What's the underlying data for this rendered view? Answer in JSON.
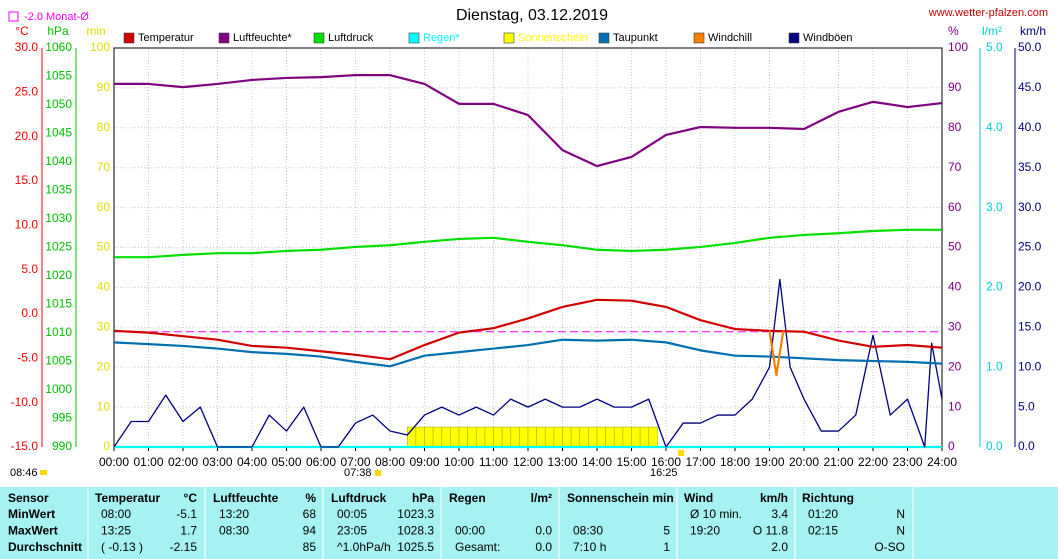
{
  "chart_data": {
    "type": "line",
    "title": "Dienstag, 03.12.2019",
    "source": "www.wetter-pfalzen.com",
    "mean": {
      "value": -2.0,
      "label": "-2.0 Monat-Ø",
      "color": "#ff00ff"
    },
    "sun": {
      "sunrise": "07:38",
      "sunset": "16:25",
      "duration": "08:46"
    },
    "grid": true,
    "xlim": [
      0,
      24
    ],
    "xticks": [
      {
        "value": 0,
        "label": "00:00"
      },
      {
        "value": 1,
        "label": "01:00"
      },
      {
        "value": 2,
        "label": "02:00"
      },
      {
        "value": 3,
        "label": "03:00"
      },
      {
        "value": 4,
        "label": "04:00"
      },
      {
        "value": 5,
        "label": "05:00"
      },
      {
        "value": 6,
        "label": "06:00"
      },
      {
        "value": 7,
        "label": "07:00"
      },
      {
        "value": 8,
        "label": "08:00"
      },
      {
        "value": 9,
        "label": "09:00"
      },
      {
        "value": 10,
        "label": "10:00"
      },
      {
        "value": 11,
        "label": "11:00"
      },
      {
        "value": 12,
        "label": "12:00"
      },
      {
        "value": 13,
        "label": "13:00"
      },
      {
        "value": 14,
        "label": "14:00"
      },
      {
        "value": 15,
        "label": "15:00"
      },
      {
        "value": 16,
        "label": "16:00"
      },
      {
        "value": 17,
        "label": "17:00"
      },
      {
        "value": 18,
        "label": "18:00"
      },
      {
        "value": 19,
        "label": "19:00"
      },
      {
        "value": 20,
        "label": "20:00"
      },
      {
        "value": 21,
        "label": "21:00"
      },
      {
        "value": 22,
        "label": "22:00"
      },
      {
        "value": 23,
        "label": "23:00"
      },
      {
        "value": 24,
        "label": "24:00"
      }
    ],
    "axes": {
      "temp": {
        "unit": "°C",
        "color": "#ff0000",
        "lim": [
          -15,
          30
        ],
        "ticks": [
          {
            "value": 30,
            "label": "30.0"
          },
          {
            "value": 25,
            "label": "25.0"
          },
          {
            "value": 20,
            "label": "20.0"
          },
          {
            "value": 15,
            "label": "15.0"
          },
          {
            "value": 10,
            "label": "10.0"
          },
          {
            "value": 5,
            "label": "5.0"
          },
          {
            "value": 0,
            "label": "0.0"
          },
          {
            "value": -5,
            "label": "-5.0"
          },
          {
            "value": -10,
            "label": "-10.0"
          },
          {
            "value": -15,
            "label": "-15.0"
          }
        ]
      },
      "press": {
        "unit": "hPa",
        "color": "#00c000",
        "lim": [
          990,
          1060
        ],
        "ticks": [
          1060,
          1055,
          1050,
          1045,
          1040,
          1035,
          1030,
          1025,
          1020,
          1015,
          1010,
          1005,
          1000,
          995,
          990
        ]
      },
      "sunmin": {
        "unit": "min",
        "color": "#e0e000",
        "lim": [
          0,
          100
        ],
        "ticks": [
          100,
          90,
          80,
          70,
          60,
          50,
          40,
          30,
          20,
          10,
          0
        ]
      },
      "hum": {
        "unit": "%",
        "color": "#800080",
        "lim": [
          0,
          100
        ],
        "ticks": [
          100,
          90,
          80,
          70,
          60,
          50,
          40,
          30,
          20,
          10,
          0
        ]
      },
      "rain": {
        "unit": "l/m²",
        "color": "#00d0d0",
        "lim": [
          0,
          5
        ],
        "ticks": [
          {
            "value": 5,
            "label": "5.0"
          },
          {
            "value": 4,
            "label": "4.0"
          },
          {
            "value": 3,
            "label": "3.0"
          },
          {
            "value": 2,
            "label": "2.0"
          },
          {
            "value": 1,
            "label": "1.0"
          },
          {
            "value": 0,
            "label": "0.0"
          }
        ]
      },
      "wind": {
        "unit": "km/h",
        "color": "#000080",
        "lim": [
          0,
          50
        ],
        "ticks": [
          {
            "value": 50,
            "label": "50.0"
          },
          {
            "value": 45,
            "label": "45.0"
          },
          {
            "value": 40,
            "label": "40.0"
          },
          {
            "value": 35,
            "label": "35.0"
          },
          {
            "value": 30,
            "label": "30.0"
          },
          {
            "value": 25,
            "label": "25.0"
          },
          {
            "value": 20,
            "label": "20.0"
          },
          {
            "value": 15,
            "label": "15.0"
          },
          {
            "value": 10,
            "label": "10.0"
          },
          {
            "value": 5,
            "label": "5.0"
          },
          {
            "value": 0,
            "label": "0.0"
          }
        ]
      }
    },
    "series": [
      {
        "name": "Temperatur",
        "color": "#d00000",
        "axis": "temp",
        "x": [
          0,
          1,
          2,
          3,
          4,
          5,
          6,
          7,
          8,
          9,
          10,
          11,
          12,
          13,
          14,
          15,
          16,
          17,
          18,
          19,
          20,
          21,
          22,
          23,
          24
        ],
        "values": [
          -1.9,
          -2.1,
          -2.5,
          -2.9,
          -3.6,
          -3.8,
          -4.2,
          -4.6,
          -5.1,
          -3.5,
          -2.1,
          -1.6,
          -0.5,
          0.8,
          1.6,
          1.5,
          0.8,
          -0.7,
          -1.7,
          -1.9,
          -2.0,
          -3.0,
          -3.7,
          -3.5,
          -3.8
        ]
      },
      {
        "name": "Luftfeuchte*",
        "color": "#800080",
        "axis": "hum",
        "x": [
          0,
          1,
          2,
          3,
          4,
          5,
          6,
          7,
          8,
          9,
          10,
          11,
          12,
          13,
          14,
          15,
          16,
          17,
          18,
          19,
          20,
          21,
          22,
          23,
          24
        ],
        "values": [
          91,
          91,
          90.2,
          91,
          92,
          92.5,
          92.7,
          93.2,
          93.2,
          91,
          86,
          86,
          83.2,
          74.4,
          70.4,
          72.7,
          78.2,
          80.2,
          80,
          80,
          79.7,
          84,
          86.5,
          85.2,
          86.2
        ]
      },
      {
        "name": "Luftdruck",
        "color": "#00e000",
        "axis": "press",
        "x": [
          0,
          1,
          2,
          3,
          4,
          5,
          6,
          7,
          8,
          9,
          10,
          11,
          12,
          13,
          14,
          15,
          16,
          17,
          18,
          19,
          20,
          21,
          22,
          23,
          24
        ],
        "values": [
          1023.3,
          1023.3,
          1023.7,
          1024.0,
          1024.0,
          1024.4,
          1024.6,
          1025.1,
          1025.4,
          1026.0,
          1026.5,
          1026.7,
          1026.0,
          1025.4,
          1024.6,
          1024.4,
          1024.6,
          1025.1,
          1025.8,
          1026.7,
          1027.2,
          1027.5,
          1027.9,
          1028.1,
          1028.1
        ]
      },
      {
        "name": "Regen*",
        "color": "#00ffff",
        "axis": "rain",
        "x": [
          0,
          24
        ],
        "values": [
          0,
          0
        ]
      },
      {
        "name": "Sonnenschein",
        "color": "#ffff00",
        "axis": "sunmin",
        "type": "bar",
        "x": [
          8.5,
          8.75,
          9,
          9.25,
          9.5,
          9.75,
          10,
          10.25,
          10.5,
          10.75,
          11,
          11.25,
          11.5,
          11.75,
          12,
          12.25,
          12.5,
          12.75,
          13,
          13.25,
          13.5,
          13.75,
          14,
          14.25,
          14.5,
          14.75,
          15,
          15.25,
          15.5
        ],
        "values": [
          5,
          5,
          5,
          5,
          5,
          5,
          5,
          5,
          5,
          5,
          5,
          5,
          5,
          5,
          5,
          5,
          5,
          5,
          5,
          5,
          5,
          5,
          5,
          5,
          5,
          5,
          5,
          5,
          5
        ]
      },
      {
        "name": "Taupunkt",
        "color": "#0070b0",
        "axis": "temp",
        "x": [
          0,
          1,
          2,
          3,
          4,
          5,
          6,
          7,
          8,
          9,
          10,
          11,
          12,
          13,
          14,
          15,
          16,
          17,
          18,
          19,
          20,
          21,
          22,
          23,
          24
        ],
        "values": [
          -3.2,
          -3.4,
          -3.6,
          -3.9,
          -4.3,
          -4.5,
          -4.8,
          -5.4,
          -5.9,
          -4.7,
          -4.3,
          -3.9,
          -3.5,
          -2.9,
          -3.0,
          -2.9,
          -3.2,
          -4.1,
          -4.7,
          -4.8,
          -5.0,
          -5.2,
          -5.3,
          -5.4,
          -5.6
        ]
      },
      {
        "name": "Windchill",
        "color": "#ff8000",
        "axis": "temp",
        "x": [
          19,
          19.2,
          19.4
        ],
        "values": [
          -1.9,
          -6.9,
          -1.9
        ]
      },
      {
        "name": "Windböen",
        "color": "#000080",
        "axis": "wind",
        "x": [
          0,
          0.5,
          1,
          1.5,
          2,
          2.5,
          3,
          3.5,
          4,
          4.5,
          5,
          5.5,
          6,
          6.5,
          7,
          7.5,
          8,
          8.5,
          9,
          9.5,
          10,
          10.5,
          11,
          11.5,
          12,
          12.5,
          13,
          13.5,
          14,
          14.5,
          15,
          15.5,
          16,
          16.5,
          17,
          17.5,
          18,
          18.5,
          19,
          19.3,
          19.6,
          20,
          20.5,
          21,
          21.5,
          22,
          22.5,
          23,
          23.5,
          23.7,
          24
        ],
        "values": [
          0,
          3.2,
          3.2,
          6.5,
          3.2,
          5,
          0,
          0,
          0,
          4,
          2,
          5,
          0,
          0,
          3,
          4,
          2,
          1.5,
          4,
          5,
          4,
          5,
          4,
          6,
          5,
          6,
          5,
          5,
          6,
          5,
          5,
          6,
          0,
          3,
          3,
          4,
          4,
          6,
          10,
          21,
          10,
          6,
          2,
          2,
          4,
          14,
          4,
          6,
          0,
          13,
          6
        ]
      }
    ]
  },
  "table": {
    "header": [
      {
        "name": "Sensor"
      },
      {
        "name": "Temperatur",
        "unit": "°C"
      },
      {
        "name": "Luftfeuchte",
        "unit": "%"
      },
      {
        "name": "Luftdruck",
        "unit": "hPa"
      },
      {
        "name": "Regen",
        "unit": "l/m²"
      },
      {
        "name": "Sonnenschein min"
      },
      {
        "name": "Wind",
        "unit": "km/h"
      },
      {
        "name": "Richtung"
      }
    ],
    "rows": [
      {
        "label": "MinWert",
        "cells": [
          [
            "08:00",
            "-5.1"
          ],
          [
            "13:20",
            "68"
          ],
          [
            "00:05",
            "1023.3"
          ],
          [
            null,
            null
          ],
          [
            null,
            null
          ],
          [
            "Ø 10 min.",
            "3.4"
          ],
          [
            "01:20",
            "N"
          ]
        ]
      },
      {
        "label": "MaxWert",
        "cells": [
          [
            "13:25",
            "1.7"
          ],
          [
            "08:30",
            "94"
          ],
          [
            "23:05",
            "1028.3"
          ],
          [
            "00:00",
            "0.0"
          ],
          [
            "08:30",
            "5"
          ],
          [
            "19:20",
            "O 11.8"
          ],
          [
            "02:15",
            "N"
          ]
        ]
      },
      {
        "label": "Durchschnitt",
        "cells": [
          [
            "( -0.13 )",
            "-2.15"
          ],
          [
            null,
            "85"
          ],
          [
            "^1.0hPa/h",
            "1025.5"
          ],
          [
            "Gesamt:",
            "0.0"
          ],
          [
            "7:10 h",
            "1"
          ],
          [
            null,
            "2.0"
          ],
          [
            null,
            "O-SO"
          ]
        ]
      }
    ]
  }
}
